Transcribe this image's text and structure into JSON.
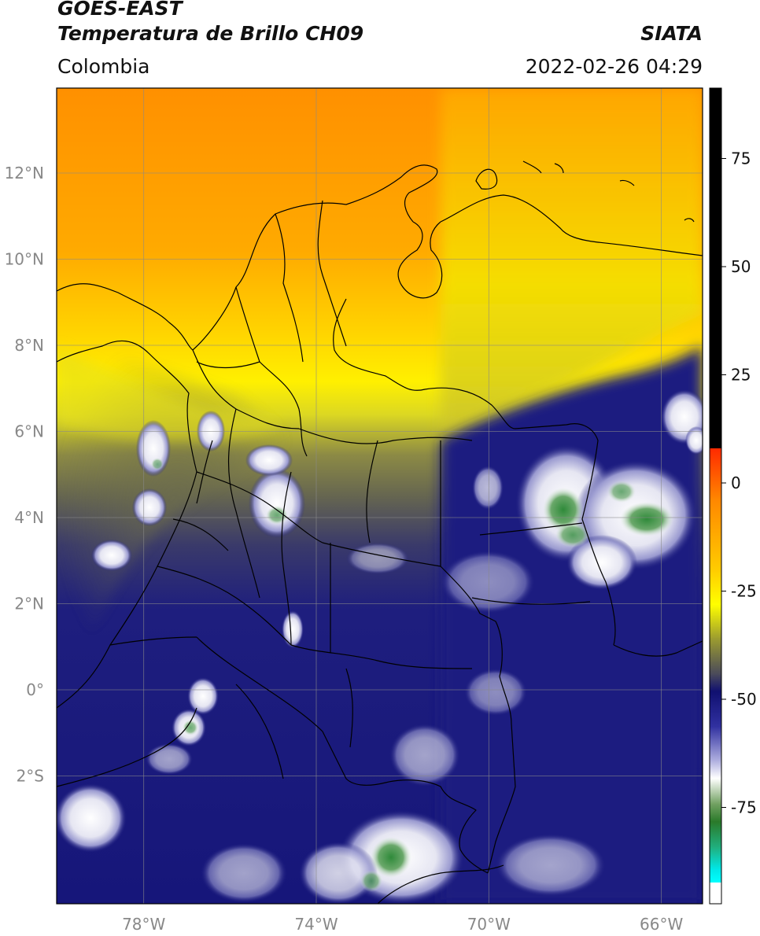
{
  "header": {
    "satellite": "GOES-EAST",
    "product": "Temperatura de Brillo CH09",
    "region": "Colombia",
    "agency": "SIATA",
    "datetime": "2022-02-26 04:29"
  },
  "map": {
    "lon_ticks": [
      {
        "value": -78,
        "label": "78°W"
      },
      {
        "value": -74,
        "label": "74°W"
      },
      {
        "value": -70,
        "label": "70°W"
      },
      {
        "value": -66,
        "label": "66°W"
      }
    ],
    "lat_ticks": [
      {
        "value": 12,
        "label": "12°N"
      },
      {
        "value": 10,
        "label": "10°N"
      },
      {
        "value": 8,
        "label": "8°N"
      },
      {
        "value": 6,
        "label": "6°N"
      },
      {
        "value": 4,
        "label": "4°N"
      },
      {
        "value": 2,
        "label": "2°N"
      },
      {
        "value": 0,
        "label": "0°"
      },
      {
        "value": -2,
        "label": "2°S"
      }
    ],
    "grid": true,
    "colors": {
      "warm_orange": "#ff9a00",
      "yellow": "#ffee00",
      "olive": "#6e6e4a",
      "navy": "#1a1a80",
      "cloud_white": "#f2f2f8",
      "green": "#3a8a3a"
    }
  },
  "colorbar": {
    "ticks": [
      {
        "value": 75,
        "label": "75"
      },
      {
        "value": 50,
        "label": "50"
      },
      {
        "value": 25,
        "label": "25"
      },
      {
        "value": 0,
        "label": "0"
      },
      {
        "value": -25,
        "label": "-25"
      },
      {
        "value": -50,
        "label": "-50"
      },
      {
        "value": -75,
        "label": "-75"
      }
    ]
  }
}
